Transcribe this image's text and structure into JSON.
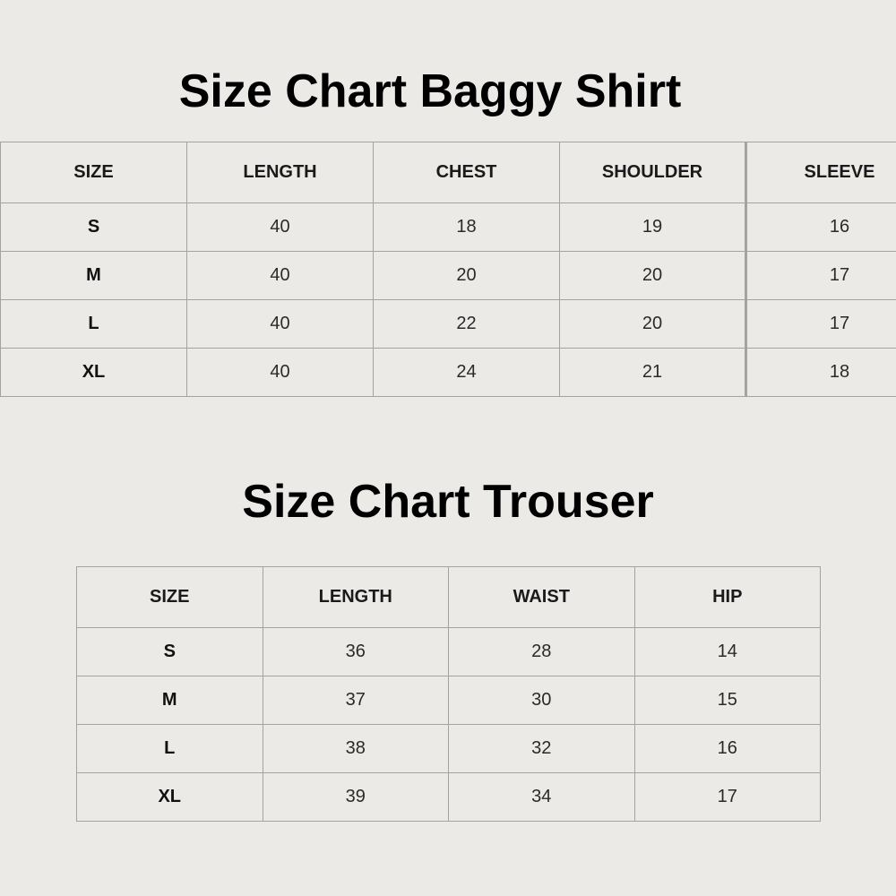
{
  "shirt": {
    "title": "Size Chart Baggy Shirt",
    "headers": [
      "SIZE",
      "LENGTH",
      "CHEST",
      "SHOULDER",
      "SLEEVE"
    ],
    "rows": [
      [
        "S",
        "40",
        "18",
        "19",
        "16"
      ],
      [
        "M",
        "40",
        "20",
        "20",
        "17"
      ],
      [
        "L",
        "40",
        "22",
        "20",
        "17"
      ],
      [
        "XL",
        "40",
        "24",
        "21",
        "18"
      ]
    ]
  },
  "trouser": {
    "title": "Size Chart Trouser",
    "headers": [
      "SIZE",
      "LENGTH",
      "WAIST",
      "HIP"
    ],
    "rows": [
      [
        "S",
        "36",
        "28",
        "14"
      ],
      [
        "M",
        "37",
        "30",
        "15"
      ],
      [
        "L",
        "38",
        "32",
        "16"
      ],
      [
        "XL",
        "39",
        "34",
        "17"
      ]
    ]
  }
}
